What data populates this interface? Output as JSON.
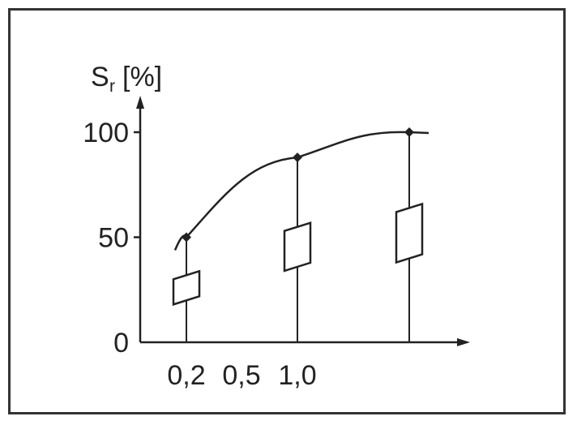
{
  "chart_data": {
    "type": "line",
    "ylabel_main": "S",
    "ylabel_sub": "r",
    "ylabel_unit": "[%]",
    "yticks": [
      "0",
      "50",
      "100"
    ],
    "ytick_values": [
      0,
      50,
      100
    ],
    "xticks": [
      "0,2",
      "0,5",
      "1,0"
    ],
    "ylim": [
      0,
      100
    ],
    "series": [
      {
        "values": [
          50,
          88,
          100
        ],
        "stations": [
          1,
          2,
          3
        ]
      }
    ],
    "boxes": [
      {
        "station": 1,
        "low": 18,
        "high": 30
      },
      {
        "station": 2,
        "low": 34,
        "high": 53
      },
      {
        "station": 3,
        "low": 38,
        "high": 62
      }
    ],
    "colors": {
      "line": "#222222",
      "frame": "#333333",
      "background": "#ffffff"
    }
  }
}
